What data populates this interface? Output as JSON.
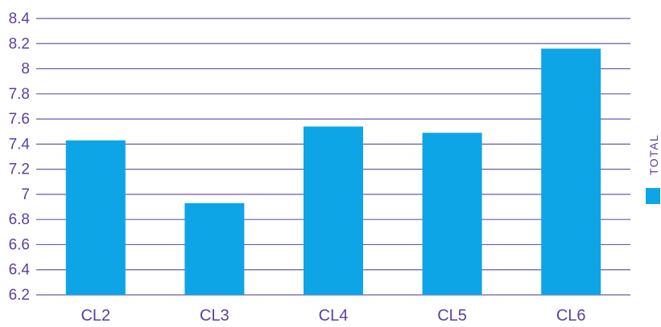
{
  "chart_data": {
    "type": "bar",
    "categories": [
      "CL2",
      "CL3",
      "CL4",
      "CL5",
      "CL6"
    ],
    "series": [
      {
        "name": "TOTAL",
        "values": [
          7.43,
          6.93,
          7.54,
          7.49,
          8.16
        ]
      }
    ],
    "ylim": [
      6.2,
      8.4
    ],
    "yticks": [
      "6.2",
      "6.4",
      "6.6",
      "6.8",
      "7",
      "7.2",
      "7.4",
      "7.6",
      "7.8",
      "8",
      "8.2",
      "8.4"
    ],
    "title": "",
    "xlabel": "",
    "ylabel": "",
    "grid": true,
    "legend_position": "right",
    "colors": {
      "bar": "#0ea5e6",
      "gridline": "#6a5aa8",
      "text": "#5b3fa0"
    }
  }
}
